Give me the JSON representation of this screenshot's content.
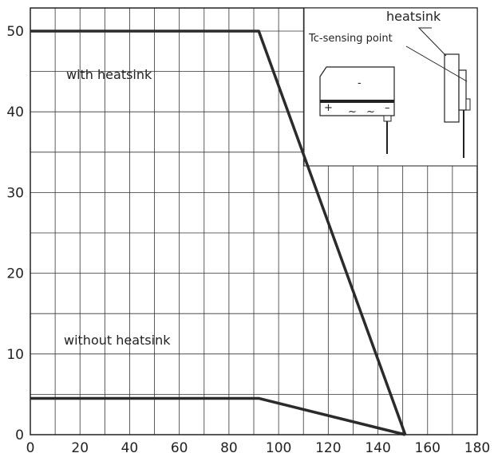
{
  "chart_data": {
    "type": "line",
    "xlim": [
      0,
      180
    ],
    "ylim": [
      0,
      52
    ],
    "x_ticks": [
      "0",
      "20",
      "40",
      "60",
      "80",
      "100",
      "120",
      "140",
      "160",
      "180"
    ],
    "y_ticks": [
      "0",
      "10",
      "20",
      "30",
      "40",
      "50"
    ],
    "grid": true,
    "series": [
      {
        "name": "with heatsink",
        "x": [
          0,
          92,
          151
        ],
        "y": [
          50,
          50,
          0
        ]
      },
      {
        "name": "without heatsink",
        "x": [
          0,
          92,
          151
        ],
        "y": [
          4.5,
          4.5,
          0
        ]
      }
    ],
    "inset": {
      "heatsink_label": "heatsink",
      "sensing_label": "Tc-sensing point",
      "pin_marks": [
        "+",
        "~",
        "~",
        "–"
      ],
      "center_mark": "-"
    }
  }
}
